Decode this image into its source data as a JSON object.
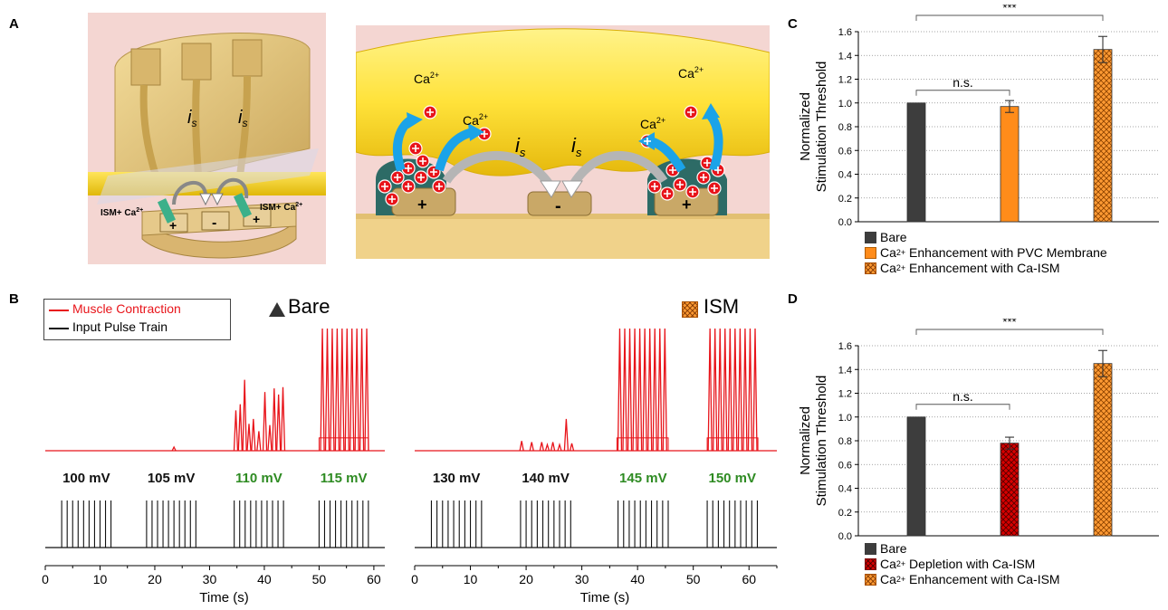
{
  "panels": {
    "a": "A",
    "b": "B",
    "c": "C",
    "d": "D"
  },
  "schematic_left": {
    "is_label": "i",
    "is_sub": "s",
    "ism_label": "ISM+ Ca",
    "sup": "2+",
    "plus": "+",
    "minus": "-"
  },
  "schematic_right": {
    "ca_label": "Ca",
    "sup": "2+",
    "is_label": "i",
    "is_sub": "s",
    "plus": "+",
    "minus": "-"
  },
  "panel_b": {
    "legend": {
      "muscle": "Muscle Contraction",
      "input": "Input Pulse Train"
    },
    "bare_title": "Bare",
    "ism_title": "ISM",
    "xlabel": "Time (s)",
    "colors": {
      "muscle": "#e8141a",
      "input": "#111111",
      "green": "#2e8b22"
    },
    "left": {
      "voltages": [
        {
          "text": "100 mV",
          "color": "#111111"
        },
        {
          "text": "105 mV",
          "color": "#111111"
        },
        {
          "text": "110 mV",
          "color": "#2e8b22"
        },
        {
          "text": "115 mV",
          "color": "#2e8b22"
        }
      ]
    },
    "right": {
      "voltages": [
        {
          "text": "130 mV",
          "color": "#111111"
        },
        {
          "text": "140 mV",
          "color": "#111111"
        },
        {
          "text": "145 mV",
          "color": "#2e8b22"
        },
        {
          "text": "150 mV",
          "color": "#2e8b22"
        }
      ]
    }
  },
  "panel_c_legend": [
    {
      "swatch": "dark",
      "pre": "Bare",
      "post": ""
    },
    {
      "swatch": "orange",
      "pre": "Ca",
      "sup": "2+",
      "post": " Enhancement with PVC Membrane"
    },
    {
      "swatch": "hatch",
      "pre": "Ca",
      "sup": "2+",
      "post": " Enhancement with Ca-ISM"
    }
  ],
  "panel_d_legend": [
    {
      "swatch": "dark",
      "pre": "Bare",
      "post": ""
    },
    {
      "swatch": "red",
      "pre": "Ca",
      "sup": "2+",
      "post": " Depletion with Ca-ISM"
    },
    {
      "swatch": "hatch",
      "pre": "Ca",
      "sup": "2+",
      "post": " Enhancement with Ca-ISM"
    }
  ],
  "chart_data": [
    {
      "type": "line",
      "title": "Bare",
      "xlabel": "Time (s)",
      "xlim": [
        0,
        62
      ],
      "xticks": [
        0,
        10,
        20,
        30,
        40,
        50,
        60
      ],
      "series": [
        {
          "name": "Muscle Contraction",
          "peaks": [
            {
              "t": 23.5,
              "h": 0.03
            },
            {
              "t": 34.8,
              "h": 0.33
            },
            {
              "t": 35.6,
              "h": 0.38
            },
            {
              "t": 36.4,
              "h": 0.58
            },
            {
              "t": 37.2,
              "h": 0.22
            },
            {
              "t": 38.0,
              "h": 0.26
            },
            {
              "t": 39.0,
              "h": 0.16
            },
            {
              "t": 40.1,
              "h": 0.48
            },
            {
              "t": 41.0,
              "h": 0.21
            },
            {
              "t": 41.8,
              "h": 0.51
            },
            {
              "t": 42.6,
              "h": 0.46
            },
            {
              "t": 43.4,
              "h": 0.52
            },
            {
              "t": 50.6,
              "h": 1.0
            },
            {
              "t": 51.5,
              "h": 1.0
            },
            {
              "t": 52.4,
              "h": 1.0
            },
            {
              "t": 53.3,
              "h": 1.0
            },
            {
              "t": 54.2,
              "h": 1.0
            },
            {
              "t": 55.1,
              "h": 1.0
            },
            {
              "t": 56.0,
              "h": 1.0
            },
            {
              "t": 56.9,
              "h": 1.0
            },
            {
              "t": 57.8,
              "h": 1.0
            },
            {
              "t": 58.7,
              "h": 1.0
            }
          ],
          "plateaus": [
            {
              "start": 50.0,
              "end": 59.0,
              "level": 0.35
            }
          ]
        },
        {
          "name": "Input Pulse Train",
          "trains": [
            {
              "start": 3.0,
              "end": 12.0
            },
            {
              "start": 18.5,
              "end": 27.5
            },
            {
              "start": 34.5,
              "end": 43.5
            },
            {
              "start": 50.0,
              "end": 59.0
            }
          ],
          "pulses_per_train": 10
        }
      ]
    },
    {
      "type": "line",
      "title": "ISM",
      "xlabel": "Time (s)",
      "xlim": [
        0,
        65
      ],
      "xticks": [
        0,
        10,
        20,
        30,
        40,
        50,
        60
      ],
      "series": [
        {
          "name": "Muscle Contraction",
          "peaks": [
            {
              "t": 19.2,
              "h": 0.08
            },
            {
              "t": 21.0,
              "h": 0.07
            },
            {
              "t": 22.8,
              "h": 0.07
            },
            {
              "t": 23.8,
              "h": 0.05
            },
            {
              "t": 24.8,
              "h": 0.07
            },
            {
              "t": 26.0,
              "h": 0.05
            },
            {
              "t": 27.2,
              "h": 0.26
            },
            {
              "t": 28.2,
              "h": 0.06
            },
            {
              "t": 36.8,
              "h": 1.0
            },
            {
              "t": 37.7,
              "h": 1.0
            },
            {
              "t": 38.6,
              "h": 1.0
            },
            {
              "t": 39.5,
              "h": 1.0
            },
            {
              "t": 40.4,
              "h": 1.0
            },
            {
              "t": 41.3,
              "h": 1.0
            },
            {
              "t": 42.2,
              "h": 1.0
            },
            {
              "t": 43.1,
              "h": 1.0
            },
            {
              "t": 44.0,
              "h": 1.0
            },
            {
              "t": 44.9,
              "h": 1.0
            },
            {
              "t": 53.0,
              "h": 1.0
            },
            {
              "t": 53.9,
              "h": 1.0
            },
            {
              "t": 54.8,
              "h": 1.0
            },
            {
              "t": 55.7,
              "h": 1.0
            },
            {
              "t": 56.6,
              "h": 1.0
            },
            {
              "t": 57.5,
              "h": 1.0
            },
            {
              "t": 58.4,
              "h": 1.0
            },
            {
              "t": 59.3,
              "h": 1.0
            },
            {
              "t": 60.2,
              "h": 1.0
            },
            {
              "t": 61.1,
              "h": 1.0
            }
          ],
          "plateaus": [
            {
              "start": 36.3,
              "end": 45.5,
              "level": 0.35
            },
            {
              "start": 52.5,
              "end": 61.6,
              "level": 0.35
            }
          ]
        },
        {
          "name": "Input Pulse Train",
          "trains": [
            {
              "start": 3.0,
              "end": 12.0
            },
            {
              "start": 19.0,
              "end": 28.0
            },
            {
              "start": 36.5,
              "end": 45.5
            },
            {
              "start": 52.5,
              "end": 61.5
            }
          ],
          "pulses_per_train": 10
        }
      ]
    },
    {
      "type": "bar",
      "ylabel": "Normalized Stimulation Threshold",
      "ylim": [
        0,
        1.6
      ],
      "yticks": [
        0.0,
        0.2,
        0.4,
        0.6,
        0.8,
        1.0,
        1.2,
        1.4,
        1.6
      ],
      "grid": true,
      "categories": [
        "Bare",
        "Ca2+ Enhancement with PVC Membrane",
        "Ca2+ Enhancement with Ca-ISM"
      ],
      "values": [
        1.0,
        0.97,
        1.45
      ],
      "errors": [
        0,
        0.05,
        0.11
      ],
      "colors": [
        "#3d3d3d",
        "#ff8c1a",
        "#ff9a33"
      ],
      "annotations": [
        {
          "from": 0,
          "to": 1,
          "text": "n.s."
        },
        {
          "from": 0,
          "to": 2,
          "text": "***"
        }
      ],
      "legend": "bottom"
    },
    {
      "type": "bar",
      "ylabel": "Normalized Stimulation Threshold",
      "ylim": [
        0,
        1.6
      ],
      "yticks": [
        0.0,
        0.2,
        0.4,
        0.6,
        0.8,
        1.0,
        1.2,
        1.4,
        1.6
      ],
      "grid": true,
      "categories": [
        "Bare",
        "Ca2+ Depletion with Ca-ISM",
        "Ca2+ Enhancement with Ca-ISM"
      ],
      "values": [
        1.0,
        0.78,
        1.45
      ],
      "errors": [
        0,
        0.05,
        0.11
      ],
      "colors": [
        "#3d3d3d",
        "#d60000",
        "#ff9a33"
      ],
      "annotations": [
        {
          "from": 0,
          "to": 1,
          "text": "n.s."
        },
        {
          "from": 0,
          "to": 2,
          "text": "***"
        }
      ],
      "legend": "bottom"
    }
  ]
}
